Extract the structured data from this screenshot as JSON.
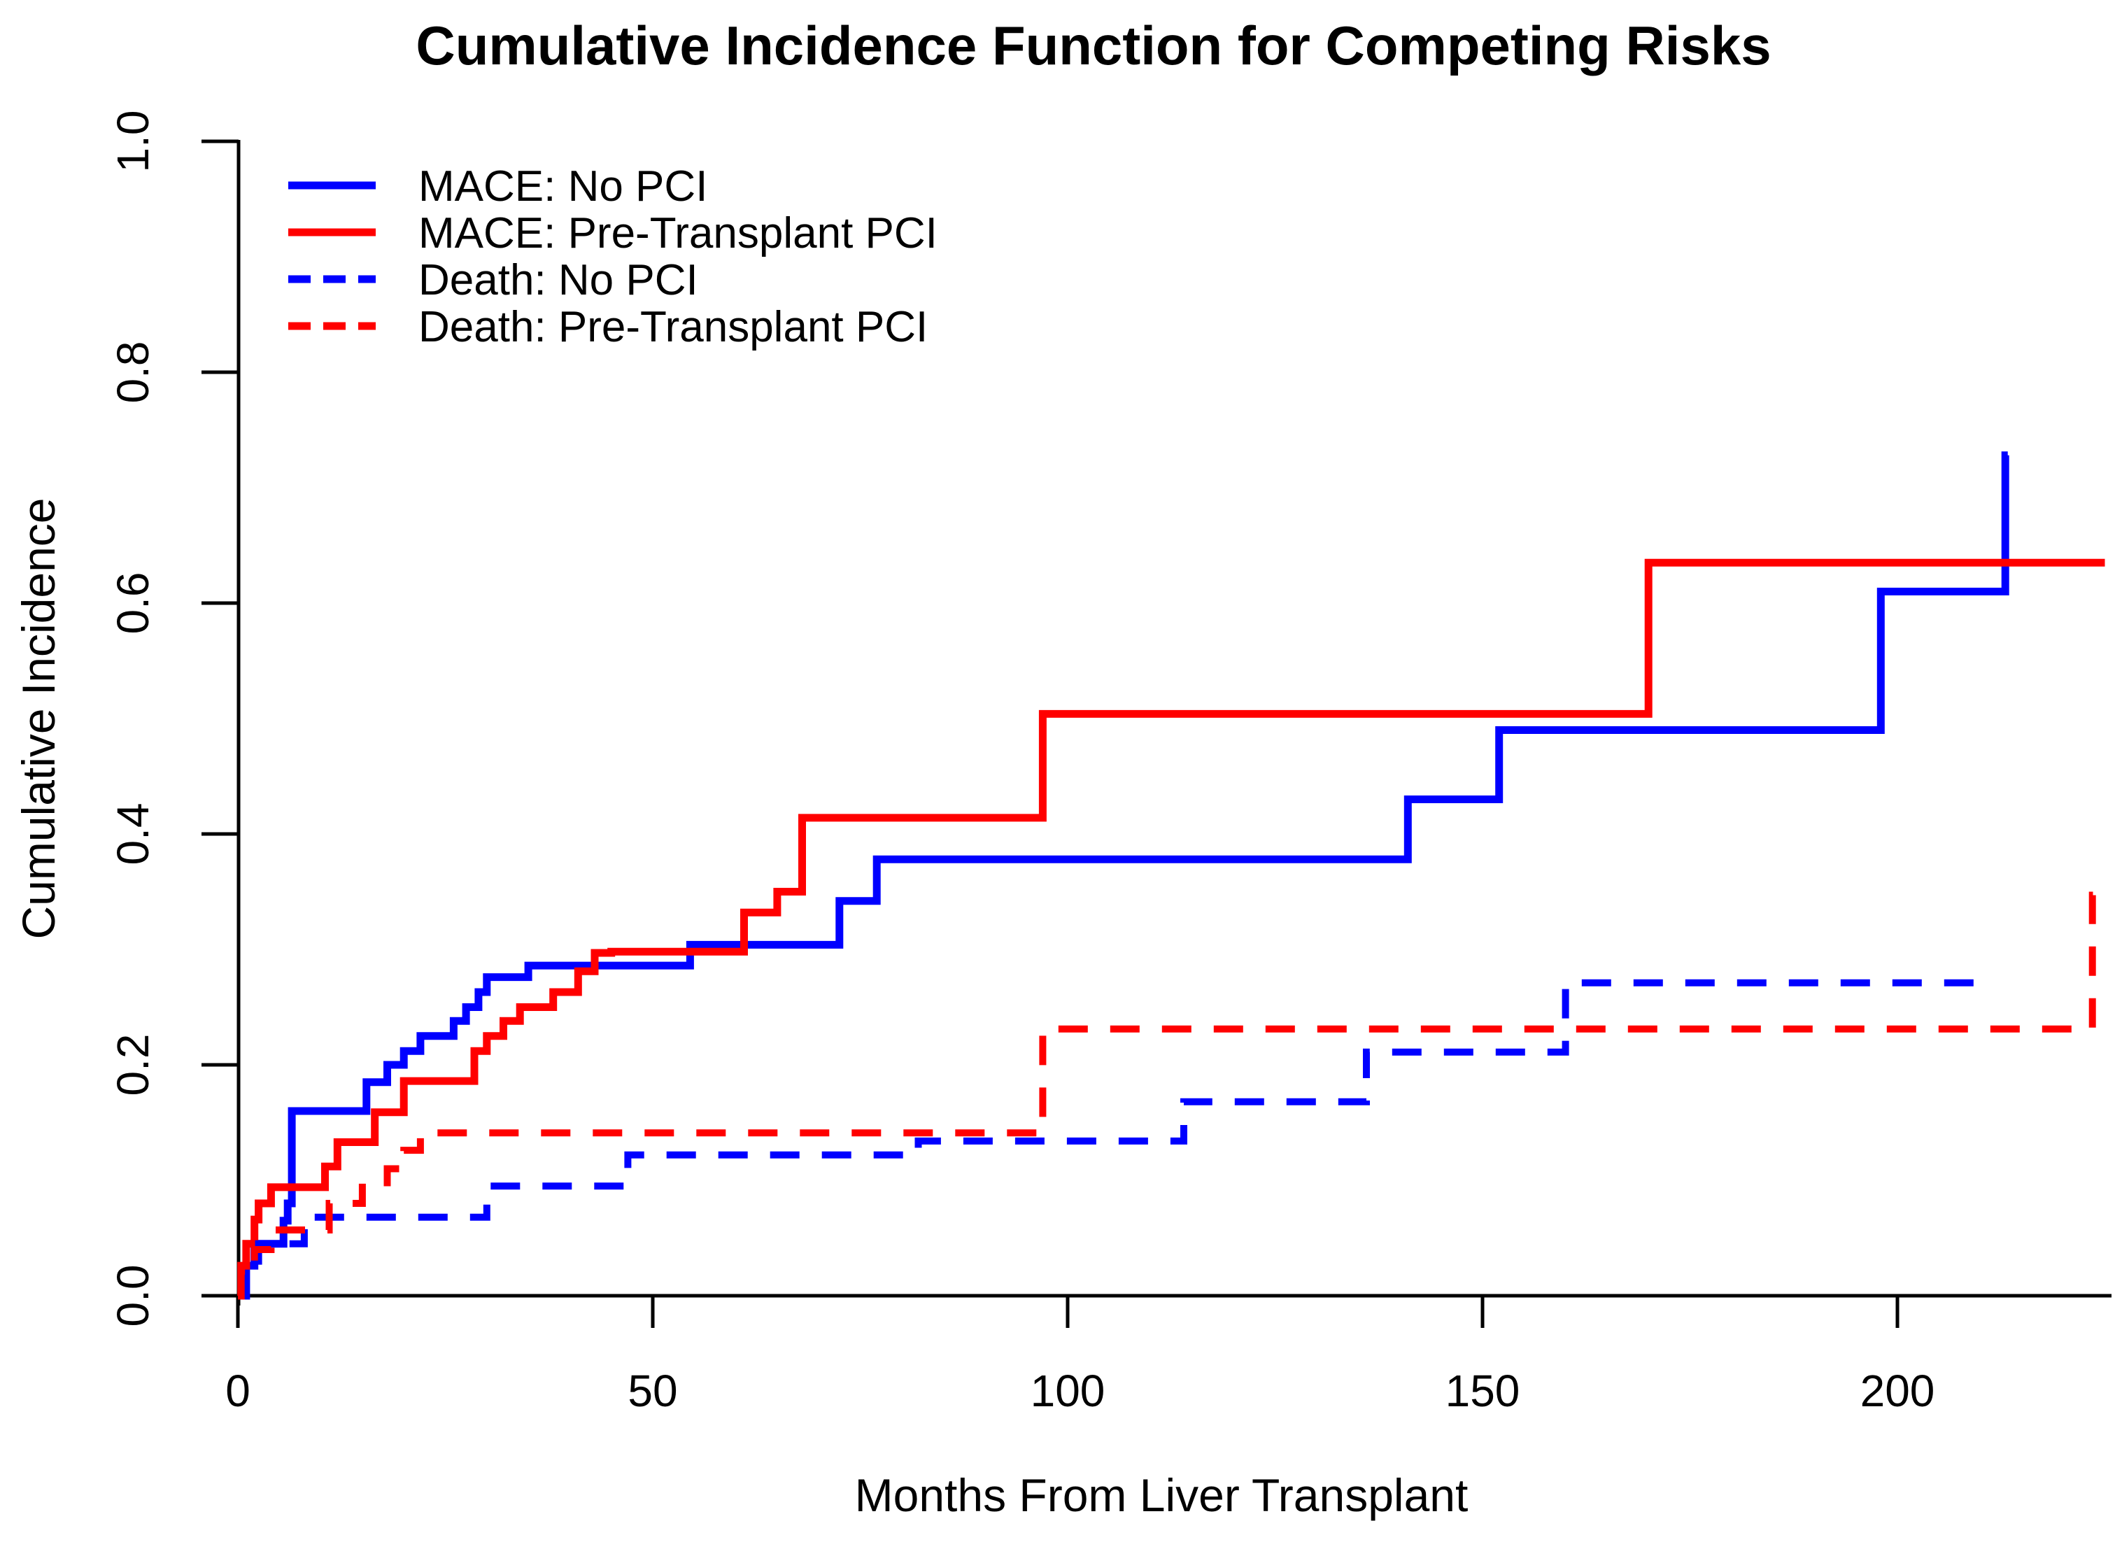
{
  "page": {
    "background": "#ffffff"
  },
  "chart_data": {
    "type": "line",
    "subtype": "step-function-cumulative-incidence",
    "title": "Cumulative Incidence Function for Competing Risks",
    "xlabel": "Months From Liver Transplant",
    "ylabel": "Cumulative Incidence",
    "xlim": [
      0,
      225
    ],
    "ylim": [
      0.0,
      1.0
    ],
    "x_ticks": [
      0,
      50,
      100,
      150,
      200
    ],
    "y_ticks": [
      {
        "value": 0.0,
        "label": "0.0"
      },
      {
        "value": 0.2,
        "label": "0.2"
      },
      {
        "value": 0.4,
        "label": "0.4"
      },
      {
        "value": 0.6,
        "label": "0.6"
      },
      {
        "value": 0.8,
        "label": "0.8"
      },
      {
        "value": 1.0,
        "label": "1.0"
      }
    ],
    "grid": false,
    "legend_position": "top-left-inside",
    "axis_color": "#000000",
    "series": [
      {
        "name": "MACE: No PCI",
        "color": "#0000FF",
        "dash": "solid",
        "step": true,
        "end_x": 213.3,
        "points": [
          [
            0,
            0
          ],
          [
            1,
            0.026
          ],
          [
            2,
            0.045
          ],
          [
            5.5,
            0.065
          ],
          [
            6,
            0.08
          ],
          [
            6.5,
            0.16
          ],
          [
            15.5,
            0.185
          ],
          [
            18,
            0.2
          ],
          [
            20,
            0.212
          ],
          [
            22,
            0.225
          ],
          [
            26,
            0.238
          ],
          [
            27.5,
            0.25
          ],
          [
            29,
            0.263
          ],
          [
            30,
            0.276
          ],
          [
            35,
            0.286
          ],
          [
            54.5,
            0.304
          ],
          [
            72.5,
            0.342
          ],
          [
            77,
            0.378
          ],
          [
            141,
            0.43
          ],
          [
            152,
            0.49
          ],
          [
            198,
            0.61
          ],
          [
            213,
            0.728
          ]
        ]
      },
      {
        "name": "MACE: Pre-Transplant PCI",
        "color": "#FF0000",
        "dash": "solid",
        "step": true,
        "end_x": 225,
        "points": [
          [
            0,
            0
          ],
          [
            0.4,
            0.026
          ],
          [
            1,
            0.045
          ],
          [
            2,
            0.066
          ],
          [
            2.5,
            0.08
          ],
          [
            4,
            0.094
          ],
          [
            10.5,
            0.112
          ],
          [
            12,
            0.133
          ],
          [
            16.5,
            0.159
          ],
          [
            20,
            0.186
          ],
          [
            28.5,
            0.212
          ],
          [
            30,
            0.225
          ],
          [
            32,
            0.238
          ],
          [
            34,
            0.25
          ],
          [
            38,
            0.263
          ],
          [
            41,
            0.281
          ],
          [
            43,
            0.297
          ],
          [
            45,
            0.298
          ],
          [
            61,
            0.332
          ],
          [
            65,
            0.35
          ],
          [
            68,
            0.414
          ],
          [
            97,
            0.504
          ],
          [
            170,
            0.635
          ]
        ]
      },
      {
        "name": "Death: No PCI",
        "color": "#0000FF",
        "dash": "dashed",
        "step": true,
        "end_x": 211,
        "points": [
          [
            0,
            0
          ],
          [
            1,
            0.023
          ],
          [
            2.5,
            0.045
          ],
          [
            8,
            0.068
          ],
          [
            30,
            0.095
          ],
          [
            47,
            0.122
          ],
          [
            82,
            0.134
          ],
          [
            114,
            0.168
          ],
          [
            136,
            0.211
          ],
          [
            160,
            0.271
          ]
        ]
      },
      {
        "name": "Death: Pre-Transplant PCI",
        "color": "#FF0000",
        "dash": "dashed",
        "step": true,
        "end_x": 224.7,
        "points": [
          [
            0,
            0
          ],
          [
            0.4,
            0.023
          ],
          [
            2,
            0.04
          ],
          [
            4,
            0.057
          ],
          [
            11,
            0.08
          ],
          [
            15,
            0.094
          ],
          [
            18,
            0.11
          ],
          [
            20,
            0.126
          ],
          [
            22,
            0.141
          ],
          [
            97,
            0.231
          ],
          [
            223.5,
            0.347
          ]
        ]
      }
    ]
  }
}
